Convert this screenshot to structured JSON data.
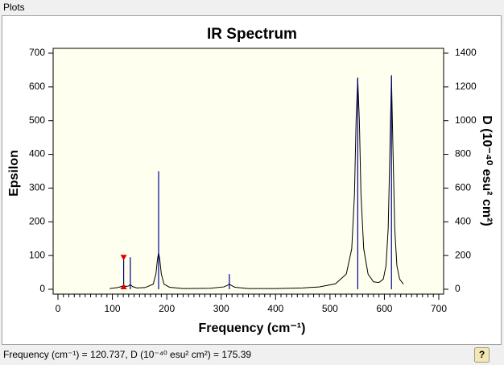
{
  "window_title": "Plots",
  "status": "Frequency (cm⁻¹) = 120.737, D (10⁻⁴⁰ esu² cm²) = 175.39",
  "help_button": "?",
  "chart_data": {
    "type": "line",
    "title": "IR Spectrum",
    "xlabel": "Frequency (cm⁻¹)",
    "ylabel": "Epsilon",
    "y2label": "D (10⁻⁴⁰ esu² cm²)",
    "xlim": [
      0,
      700
    ],
    "xticks": [
      0,
      100,
      200,
      300,
      400,
      500,
      600,
      700
    ],
    "xminorticks": [
      10,
      20,
      30,
      40,
      50,
      60,
      70,
      80,
      90,
      110,
      120,
      130,
      140,
      150,
      160,
      170,
      180,
      190,
      210,
      220,
      230,
      240,
      250,
      260,
      270,
      280,
      290,
      310,
      320,
      330,
      340,
      350,
      360,
      370,
      380,
      390,
      410,
      420,
      430,
      440,
      450,
      460,
      470,
      480,
      490,
      510,
      520,
      530,
      540,
      550,
      560,
      570,
      580,
      590,
      610,
      620,
      630,
      640,
      650,
      660,
      670,
      680,
      690
    ],
    "ylim": [
      0,
      700
    ],
    "yticks": [
      0,
      100,
      200,
      300,
      400,
      500,
      600,
      700
    ],
    "y2lim": [
      0,
      1400
    ],
    "y2ticks": [
      0,
      200,
      400,
      600,
      800,
      1000,
      1200,
      1400
    ],
    "background": "#fffff0",
    "series": [
      {
        "style": "line",
        "color": "#000000",
        "x": [
          95,
          110,
          118,
          121,
          125,
          130,
          133,
          137,
          145,
          160,
          175,
          180,
          183,
          185,
          187,
          190,
          195,
          205,
          230,
          280,
          305,
          312,
          315,
          318,
          325,
          350,
          400,
          450,
          480,
          510,
          530,
          540,
          545,
          548,
          551,
          554,
          557,
          562,
          570,
          580,
          590,
          598,
          603,
          607,
          610,
          613,
          616,
          619,
          623,
          628,
          635
        ],
        "values": [
          2,
          5,
          9,
          12,
          8,
          10,
          14,
          8,
          4,
          5,
          15,
          45,
          90,
          108,
          90,
          45,
          15,
          6,
          2,
          3,
          7,
          12,
          15,
          12,
          6,
          2,
          2,
          4,
          7,
          16,
          45,
          120,
          280,
          500,
          625,
          500,
          280,
          120,
          45,
          22,
          20,
          30,
          70,
          180,
          400,
          630,
          400,
          180,
          70,
          30,
          15
        ]
      },
      {
        "style": "stick",
        "axis": "y2",
        "color": "#00008b",
        "x": [
          120.737,
          133,
          185,
          315,
          551,
          613
        ],
        "values": [
          175.39,
          190,
          700,
          90,
          1255,
          1270
        ]
      }
    ],
    "selected": {
      "series": 1,
      "index": 0,
      "color": "#e00000"
    }
  }
}
